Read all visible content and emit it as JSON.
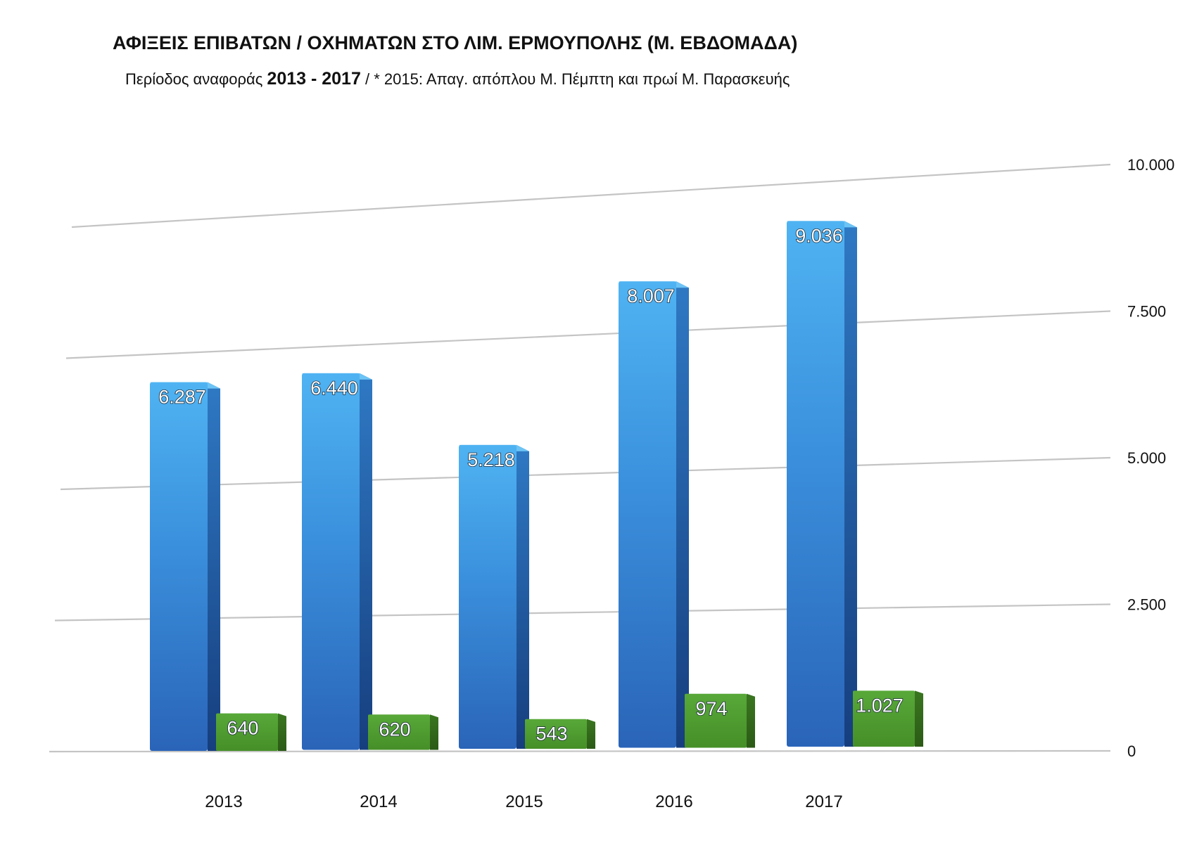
{
  "title": "ΑΦΙΞΕΙΣ ΕΠΙΒΑΤΩΝ / ΟΧΗΜΑΤΩΝ ΣΤΟ ΛΙΜ. ΕΡΜΟΥΠΟΛΗΣ (Μ. ΕΒΔΟΜΑΔΑ)",
  "subtitle": {
    "prefix": "Περίοδος αναφοράς ",
    "period": "2013 - 2017",
    "note": " / * 2015: Απαγ. απόπλου Μ. Πέμπτη και πρωί Μ. Παρασκευής"
  },
  "chart_data": {
    "type": "bar",
    "categories": [
      "2013",
      "2014",
      "2015",
      "2016",
      "2017"
    ],
    "series": [
      {
        "values": [
          6287,
          6440,
          5218,
          8007,
          9036
        ],
        "labels": [
          "6.287",
          "6.440",
          "5.218",
          "8.007",
          "9.036"
        ],
        "color": "#2f7fd0"
      },
      {
        "values": [
          640,
          620,
          543,
          974,
          1027
        ],
        "labels": [
          "640",
          "620",
          "543",
          "974",
          "1.027"
        ],
        "color": "#4e9a2a"
      }
    ],
    "yticks": [
      0,
      2500,
      5000,
      7500,
      10000
    ],
    "ytick_labels": [
      "0",
      "2.500",
      "5.000",
      "7.500",
      "10.000"
    ],
    "ylim": [
      0,
      10000
    ],
    "grid": true,
    "three_d": true
  }
}
